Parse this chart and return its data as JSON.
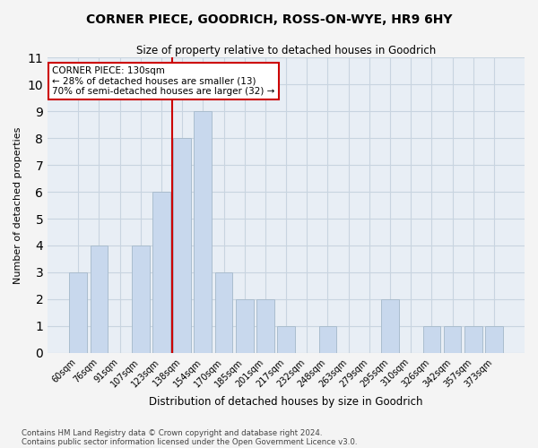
{
  "title": "CORNER PIECE, GOODRICH, ROSS-ON-WYE, HR9 6HY",
  "subtitle": "Size of property relative to detached houses in Goodrich",
  "xlabel": "Distribution of detached houses by size in Goodrich",
  "ylabel": "Number of detached properties",
  "categories": [
    "60sqm",
    "76sqm",
    "91sqm",
    "107sqm",
    "123sqm",
    "138sqm",
    "154sqm",
    "170sqm",
    "185sqm",
    "201sqm",
    "217sqm",
    "232sqm",
    "248sqm",
    "263sqm",
    "279sqm",
    "295sqm",
    "310sqm",
    "326sqm",
    "342sqm",
    "357sqm",
    "373sqm"
  ],
  "values": [
    3,
    4,
    0,
    4,
    6,
    8,
    9,
    3,
    2,
    2,
    1,
    0,
    1,
    0,
    0,
    2,
    0,
    1,
    1,
    1,
    1
  ],
  "bar_color": "#c8d8ed",
  "bar_edgecolor": "#aabdce",
  "grid_color": "#c8d4e0",
  "vline_color": "#cc0000",
  "annotation_title": "CORNER PIECE: 130sqm",
  "annotation_line1": "← 28% of detached houses are smaller (13)",
  "annotation_line2": "70% of semi-detached houses are larger (32) →",
  "annotation_box_edgecolor": "#cc0000",
  "ylim": [
    0,
    11
  ],
  "yticks": [
    0,
    1,
    2,
    3,
    4,
    5,
    6,
    7,
    8,
    9,
    10,
    11
  ],
  "footer1": "Contains HM Land Registry data © Crown copyright and database right 2024.",
  "footer2": "Contains public sector information licensed under the Open Government Licence v3.0.",
  "fig_bg": "#f4f4f4",
  "plot_bg": "#e8eef5"
}
